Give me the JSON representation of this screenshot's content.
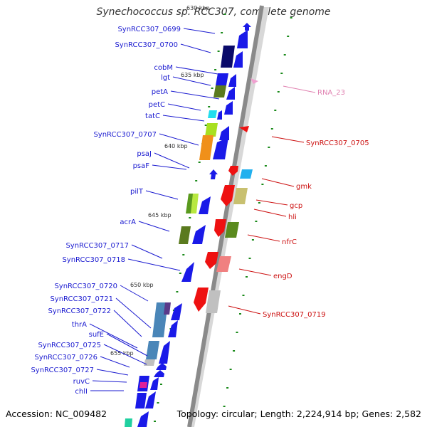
{
  "title": "Synechococcus sp. RCC307, complete genome",
  "footer": {
    "accession": "Accession: NC_009482",
    "topology": "Topology: circular; Length: 2,224,914 bp; Genes: 2,582"
  },
  "colors": {
    "left_label": "#1a1ad0",
    "right_label": "#cc1010",
    "rna_label": "#e080b0",
    "tick": "#1a8a1a",
    "backbone": "#888888"
  },
  "scale_ticks": [
    {
      "label": "630 kbp"
    },
    {
      "label": "635 kbp"
    },
    {
      "label": "640 kbp"
    },
    {
      "label": "645 kbp"
    },
    {
      "label": "650 kbp"
    },
    {
      "label": "655 kbp"
    }
  ],
  "left_genes": [
    {
      "name": "SynRCC307_0699"
    },
    {
      "name": "SynRCC307_0700"
    },
    {
      "name": "cobM"
    },
    {
      "name": "lgt"
    },
    {
      "name": "petA"
    },
    {
      "name": "petC"
    },
    {
      "name": "tatC"
    },
    {
      "name": "SynRCC307_0707"
    },
    {
      "name": "psaJ"
    },
    {
      "name": "psaF"
    },
    {
      "name": "pilT"
    },
    {
      "name": "acrA"
    },
    {
      "name": "SynRCC307_0717"
    },
    {
      "name": "SynRCC307_0718"
    },
    {
      "name": "SynRCC307_0720"
    },
    {
      "name": "SynRCC307_0721"
    },
    {
      "name": "SynRCC307_0722"
    },
    {
      "name": "thrA"
    },
    {
      "name": "sufE"
    },
    {
      "name": "SynRCC307_0725"
    },
    {
      "name": "SynRCC307_0726"
    },
    {
      "name": "SynRCC307_0727"
    },
    {
      "name": "ruvC"
    },
    {
      "name": "chlI"
    }
  ],
  "right_genes": [
    {
      "name": "RNA_23",
      "kind": "rna"
    },
    {
      "name": "SynRCC307_0705",
      "kind": "cds"
    },
    {
      "name": "gmk",
      "kind": "cds"
    },
    {
      "name": "gcp",
      "kind": "cds"
    },
    {
      "name": "hli",
      "kind": "cds"
    },
    {
      "name": "nfrC",
      "kind": "cds"
    },
    {
      "name": "engD",
      "kind": "cds"
    },
    {
      "name": "SynRCC307_0719",
      "kind": "cds"
    }
  ]
}
